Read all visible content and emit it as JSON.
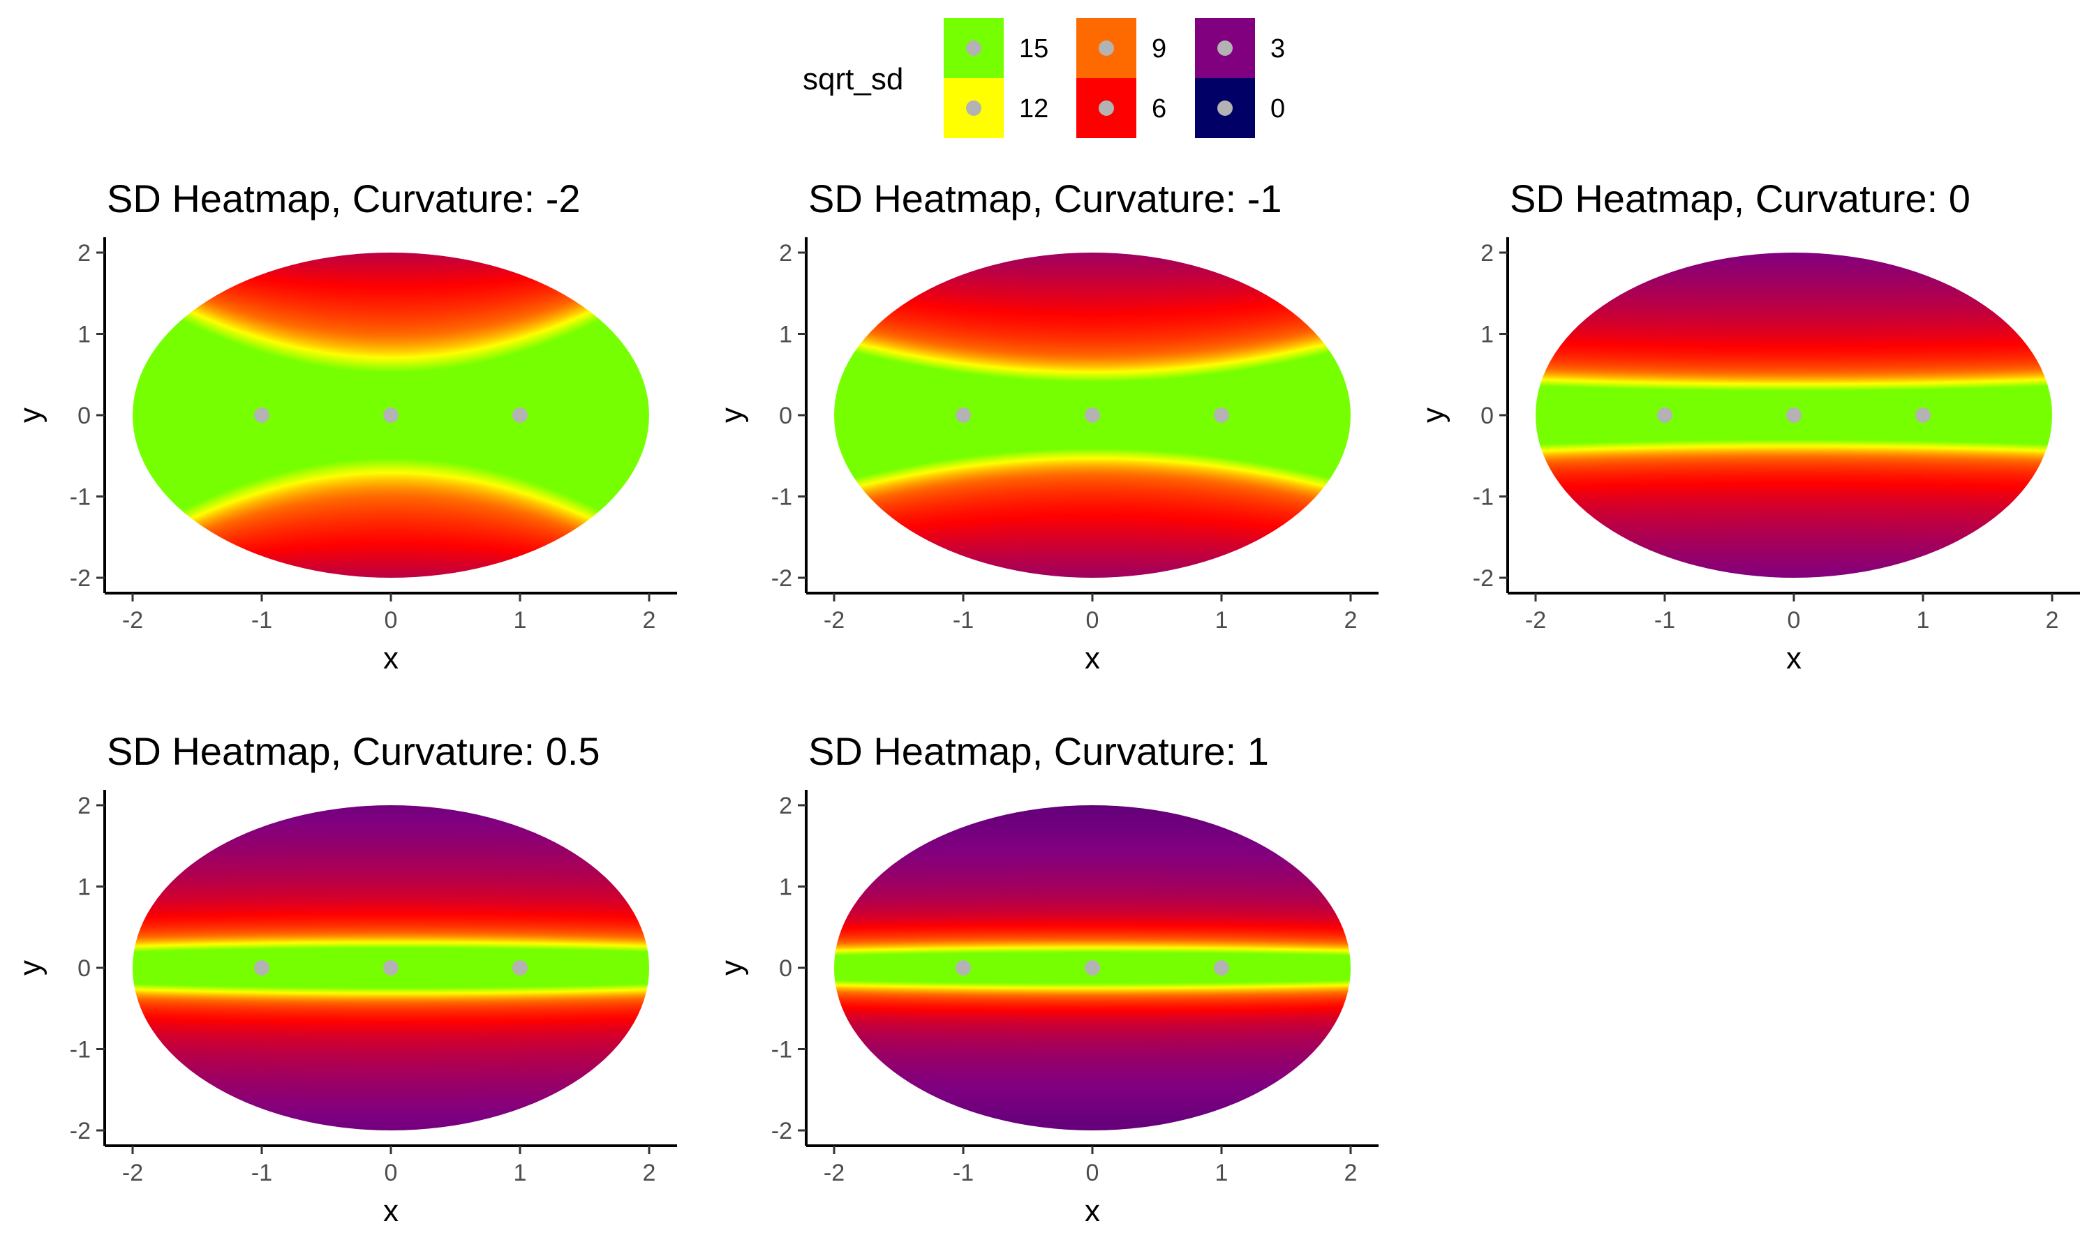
{
  "chart_data": {
    "type": "heatmap",
    "fill_variable": "sqrt_sd",
    "legend": {
      "title": "sqrt_sd",
      "placement": "top",
      "entries": [
        {
          "label": "15",
          "value": 15,
          "color": "#76ff00"
        },
        {
          "label": "12",
          "value": 12,
          "color": "#ffff00"
        },
        {
          "label": "9",
          "value": 9,
          "color": "#ff6a00"
        },
        {
          "label": "6",
          "value": 6,
          "color": "#ff0000"
        },
        {
          "label": "3",
          "value": 3,
          "color": "#800080"
        },
        {
          "label": "0",
          "value": 0,
          "color": "#000066"
        }
      ]
    },
    "points": [
      [
        -1,
        0
      ],
      [
        0,
        0
      ],
      [
        1,
        0
      ]
    ],
    "point_color": "#b3b3b3",
    "panels": [
      {
        "title": "SD Heatmap, Curvature:  -2",
        "curvature": -2
      },
      {
        "title": "SD Heatmap, Curvature:  -1",
        "curvature": -1
      },
      {
        "title": "SD Heatmap, Curvature:  0",
        "curvature": 0
      },
      {
        "title": "SD Heatmap, Curvature:  0.5",
        "curvature": 0.5
      },
      {
        "title": "SD Heatmap, Curvature:  1",
        "curvature": 1
      }
    ],
    "xlabel": "x",
    "ylabel": "y",
    "xlim": [
      -2,
      2
    ],
    "ylim": [
      -2,
      2
    ],
    "xticks": [
      -2,
      -1,
      0,
      1,
      2
    ],
    "yticks": [
      -2,
      -1,
      0,
      1,
      2
    ],
    "grid": false
  }
}
